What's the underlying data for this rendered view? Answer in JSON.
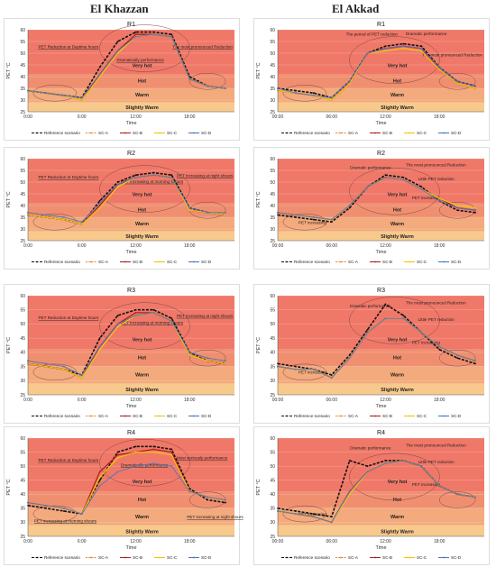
{
  "columns": {
    "left": "El Khazzan",
    "right": "El Akkad"
  },
  "colors": {
    "Reference scenario": "#111111",
    "SC-A": "#e8872a",
    "SC-B": "#b02020",
    "SC-C": "#f2c50c",
    "SC-D": "#4a78c2",
    "zone_very_hot": "#f07868",
    "zone_hot": "#f08f70",
    "zone_warm": "#f3aa7c",
    "zone_slightly_warm": "#f8c98c"
  },
  "legend_labels": [
    "Reference scenario",
    "SC-A",
    "SC-B",
    "SC-C",
    "SC-D"
  ],
  "chart_data": [
    {
      "type": "line",
      "title": "R1",
      "xlabel": "Time",
      "ylabel": "PET °C",
      "x": [
        0,
        2,
        4,
        6,
        8,
        10,
        12,
        14,
        16,
        18,
        20,
        22
      ],
      "xticks": [
        "0:00",
        "6:00",
        "12:00",
        "18:00"
      ],
      "ylim": [
        25,
        60
      ],
      "yticks": [
        25,
        30,
        35,
        40,
        45,
        50,
        55,
        60
      ],
      "zones": {
        "very_hot": "Very hot",
        "hot": "Hot",
        "warm": "Warm",
        "slightly_warm": "Slightly Warm"
      },
      "series": [
        {
          "name": "Reference scenario",
          "values": [
            34,
            33,
            32,
            31,
            44,
            55,
            59,
            59,
            58,
            40,
            36,
            35
          ]
        },
        {
          "name": "SC-A",
          "values": [
            34,
            33,
            32,
            30,
            40,
            50,
            57,
            58,
            57,
            39,
            36,
            35
          ]
        },
        {
          "name": "SC-B",
          "values": [
            34,
            33,
            32,
            30,
            41,
            51,
            58,
            58,
            57,
            39,
            36,
            35
          ]
        },
        {
          "name": "SC-C",
          "values": [
            34,
            33,
            32,
            30,
            40,
            50,
            57,
            58,
            57,
            39,
            36,
            35
          ]
        },
        {
          "name": "SC-D",
          "values": [
            34,
            33,
            32,
            31,
            41,
            51,
            57,
            58,
            57,
            39,
            36,
            35
          ]
        }
      ],
      "annotations": [
        "PET Reduction at Daytime hours",
        "Dramatically performance",
        "The most pronounced Reduction"
      ]
    },
    {
      "type": "line",
      "title": "R1",
      "xlabel": "Time",
      "ylabel": "PET °C",
      "x": [
        0,
        2,
        4,
        6,
        8,
        10,
        12,
        14,
        16,
        18,
        20,
        22
      ],
      "xticks": [
        "00:00",
        "06:00",
        "12:00",
        "18:00"
      ],
      "ylim": [
        25,
        60
      ],
      "yticks": [
        25,
        30,
        35,
        40,
        45,
        50,
        55,
        60
      ],
      "zones": {
        "very_hot": "Very hot",
        "hot": "Hot",
        "warm": "Warm",
        "slightly_warm": "Slightly Warm"
      },
      "series": [
        {
          "name": "Reference scenario",
          "values": [
            35,
            34,
            33,
            31,
            38,
            50,
            53,
            54,
            53,
            44,
            38,
            36
          ]
        },
        {
          "name": "SC-A",
          "values": [
            34,
            33,
            32,
            30,
            37,
            50,
            51,
            52,
            51,
            43,
            37,
            35
          ]
        },
        {
          "name": "SC-B",
          "values": [
            34,
            33,
            32,
            30,
            37,
            50,
            52,
            53,
            52,
            43,
            37,
            35
          ]
        },
        {
          "name": "SC-C",
          "values": [
            34,
            33,
            32,
            30,
            37,
            50,
            51,
            52,
            51,
            43,
            37,
            35
          ]
        },
        {
          "name": "SC-D",
          "values": [
            35,
            33,
            32,
            31,
            38,
            50,
            52,
            53,
            52,
            44,
            38,
            36
          ]
        }
      ],
      "annotations": [
        "The period of PET reduction",
        "Dramatic performance",
        "The most pronounced Reduction"
      ]
    },
    {
      "type": "line",
      "title": "R2",
      "xlabel": "Time",
      "ylabel": "PET °C",
      "x": [
        0,
        2,
        4,
        6,
        8,
        10,
        12,
        14,
        16,
        18,
        20,
        22
      ],
      "xticks": [
        "0:00",
        "6:00",
        "12:00",
        "18:00"
      ],
      "ylim": [
        25,
        60
      ],
      "yticks": [
        25,
        30,
        35,
        40,
        45,
        50,
        55,
        60
      ],
      "zones": {
        "very_hot": "Very hot",
        "hot": "Hot",
        "warm": "Warm",
        "slightly_warm": "Slightly Warm"
      },
      "series": [
        {
          "name": "Reference scenario",
          "values": [
            36,
            35,
            34,
            32,
            42,
            50,
            53,
            54,
            53,
            39,
            37,
            36
          ]
        },
        {
          "name": "SC-A",
          "values": [
            37,
            36,
            35,
            33,
            40,
            49,
            52,
            53,
            52,
            38,
            37,
            37
          ]
        },
        {
          "name": "SC-B",
          "values": [
            36,
            35,
            34,
            32,
            40,
            49,
            52,
            53,
            52,
            38,
            37,
            36
          ]
        },
        {
          "name": "SC-C",
          "values": [
            36,
            35,
            34,
            32,
            39,
            48,
            52,
            53,
            52,
            38,
            37,
            36
          ]
        },
        {
          "name": "SC-D",
          "values": [
            37,
            36,
            35,
            33,
            41,
            49,
            52,
            53,
            52,
            39,
            37,
            37
          ]
        }
      ],
      "annotations": [
        "PET Reduction at Daytime hours",
        "PET increasing at morning shours",
        "PET increasing at night shours"
      ]
    },
    {
      "type": "line",
      "title": "R2",
      "xlabel": "Time",
      "ylabel": "PET °C",
      "x": [
        0,
        2,
        4,
        6,
        8,
        10,
        12,
        14,
        16,
        18,
        20,
        22
      ],
      "xticks": [
        "00:00",
        "06:00",
        "12:00",
        "18:00"
      ],
      "ylim": [
        25,
        60
      ],
      "yticks": [
        25,
        30,
        35,
        40,
        45,
        50,
        55,
        60
      ],
      "zones": {
        "very_hot": "Very hot",
        "hot": "Hot",
        "warm": "Warm",
        "slightly_warm": "Slightly Warm"
      },
      "series": [
        {
          "name": "Reference scenario",
          "values": [
            36,
            35,
            34,
            33,
            39,
            48,
            53,
            52,
            48,
            42,
            38,
            37
          ]
        },
        {
          "name": "SC-A",
          "values": [
            37,
            36,
            35,
            34,
            40,
            48,
            52,
            51,
            47,
            43,
            40,
            39
          ]
        },
        {
          "name": "SC-B",
          "values": [
            37,
            36,
            35,
            34,
            40,
            48,
            52,
            51,
            47,
            43,
            39,
            38
          ]
        },
        {
          "name": "SC-C",
          "values": [
            37,
            36,
            35,
            34,
            40,
            48,
            52,
            51,
            47,
            43,
            40,
            39
          ]
        },
        {
          "name": "SC-D",
          "values": [
            37,
            36,
            35,
            34,
            40,
            48,
            52,
            51,
            47,
            42,
            39,
            38
          ]
        }
      ],
      "annotations": [
        "Dramatic performance",
        "The most pronounced Reduction",
        "Little PET reduction",
        "PET increasing",
        "PET increasing"
      ]
    },
    {
      "type": "line",
      "title": "R3",
      "xlabel": "Time",
      "ylabel": "PET °C",
      "x": [
        0,
        2,
        4,
        6,
        8,
        10,
        12,
        14,
        16,
        18,
        20,
        22
      ],
      "xticks": [
        "0:00",
        "6:00",
        "12:00",
        "18:00"
      ],
      "ylim": [
        25,
        60
      ],
      "yticks": [
        25,
        30,
        35,
        40,
        45,
        50,
        55,
        60
      ],
      "zones": {
        "very_hot": "Very hot",
        "hot": "Hot",
        "warm": "Warm",
        "slightly_warm": "Slightly Warm"
      },
      "series": [
        {
          "name": "Reference scenario",
          "values": [
            36,
            35,
            34,
            32,
            45,
            53,
            55,
            55,
            52,
            40,
            37,
            36
          ]
        },
        {
          "name": "SC-A",
          "values": [
            37,
            36,
            35,
            32,
            41,
            49,
            53,
            54,
            51,
            39,
            38,
            37
          ]
        },
        {
          "name": "SC-B",
          "values": [
            36,
            35,
            34,
            31,
            42,
            50,
            54,
            54,
            51,
            39,
            37,
            36
          ]
        },
        {
          "name": "SC-C",
          "values": [
            36,
            35,
            34,
            31,
            41,
            49,
            53,
            54,
            51,
            39,
            37,
            36
          ]
        },
        {
          "name": "SC-D",
          "values": [
            37,
            36,
            35,
            32,
            42,
            50,
            53,
            54,
            51,
            40,
            38,
            37
          ]
        }
      ],
      "annotations": [
        "PET Reduction at Daytime hours",
        "PET increasing at morning shours",
        "PET increasing at night shours"
      ]
    },
    {
      "type": "line",
      "title": "R3",
      "xlabel": "Time",
      "ylabel": "PET °C",
      "x": [
        0,
        2,
        4,
        6,
        8,
        10,
        12,
        14,
        16,
        18,
        20,
        22
      ],
      "xticks": [
        "00:00",
        "06:00",
        "12:00",
        "18:00"
      ],
      "ylim": [
        25,
        60
      ],
      "yticks": [
        25,
        30,
        35,
        40,
        45,
        50,
        55,
        60
      ],
      "zones": {
        "very_hot": "Very hot",
        "hot": "Hot",
        "warm": "Warm",
        "slightly_warm": "Slightly Warm"
      },
      "series": [
        {
          "name": "Reference scenario",
          "values": [
            36,
            35,
            34,
            32,
            39,
            48,
            57,
            53,
            47,
            41,
            38,
            36
          ]
        },
        {
          "name": "SC-A",
          "values": [
            35,
            34,
            34,
            31,
            38,
            47,
            52,
            52,
            47,
            42,
            39,
            37
          ]
        },
        {
          "name": "SC-B",
          "values": [
            35,
            34,
            34,
            31,
            38,
            47,
            52,
            52,
            47,
            42,
            39,
            37
          ]
        },
        {
          "name": "SC-C",
          "values": [
            35,
            34,
            34,
            31,
            38,
            47,
            52,
            52,
            47,
            42,
            39,
            37
          ]
        },
        {
          "name": "SC-D",
          "values": [
            35,
            34,
            34,
            31,
            38,
            47,
            52,
            52,
            47,
            42,
            39,
            37
          ]
        }
      ],
      "annotations": [
        "Dramatic performance",
        "The most pronounced Reduction",
        "Little PET reduction",
        "PET increasing",
        "PET increasing"
      ]
    },
    {
      "type": "line",
      "title": "R4",
      "xlabel": "Time",
      "ylabel": "PET °C",
      "x": [
        0,
        2,
        4,
        6,
        8,
        10,
        12,
        14,
        16,
        18,
        20,
        22
      ],
      "xticks": [
        "0:00",
        "6:00",
        "12:00",
        "18:00"
      ],
      "ylim": [
        25,
        60
      ],
      "yticks": [
        25,
        30,
        35,
        40,
        45,
        50,
        55,
        60
      ],
      "zones": {
        "very_hot": "Very hot",
        "hot": "Hot",
        "warm": "Warm",
        "slightly_warm": "Slightly Warm"
      },
      "series": [
        {
          "name": "Reference scenario",
          "values": [
            36,
            35,
            34,
            33,
            45,
            55,
            57,
            57,
            56,
            42,
            38,
            37
          ]
        },
        {
          "name": "SC-A",
          "values": [
            37,
            36,
            35,
            33,
            44,
            53,
            55,
            56,
            55,
            41,
            39,
            38
          ]
        },
        {
          "name": "SC-B",
          "values": [
            37,
            36,
            35,
            33,
            48,
            54,
            55,
            56,
            55,
            41,
            39,
            38
          ]
        },
        {
          "name": "SC-C",
          "values": [
            37,
            36,
            35,
            33,
            46,
            53,
            55,
            55,
            54,
            41,
            39,
            38
          ]
        },
        {
          "name": "SC-D",
          "values": [
            37,
            36,
            35,
            33,
            43,
            48,
            50,
            51,
            50,
            41,
            39,
            38
          ]
        }
      ],
      "annotations": [
        "PET Reduction at Daytime hours",
        "Dramatically performance",
        "Most seriously performance",
        "PET increasing at morning shours",
        "PET increasing at night shours"
      ]
    },
    {
      "type": "line",
      "title": "R4",
      "xlabel": "Time",
      "ylabel": "PET °C",
      "x": [
        0,
        2,
        4,
        6,
        8,
        10,
        12,
        14,
        16,
        18,
        20,
        22
      ],
      "xticks": [
        "00:00",
        "06:00",
        "12:00",
        "18:00"
      ],
      "ylim": [
        25,
        60
      ],
      "yticks": [
        25,
        30,
        35,
        40,
        45,
        50,
        55,
        60
      ],
      "zones": {
        "very_hot": "Very hot",
        "hot": "Hot",
        "warm": "Warm",
        "slightly_warm": "Slightly Warm"
      },
      "series": [
        {
          "name": "Reference scenario",
          "values": [
            35,
            34,
            33,
            32,
            52,
            50,
            52,
            52,
            50,
            43,
            40,
            39
          ]
        },
        {
          "name": "SC-A",
          "values": [
            34,
            33,
            32,
            30,
            40,
            48,
            51,
            52,
            50,
            43,
            40,
            39
          ]
        },
        {
          "name": "SC-B",
          "values": [
            34,
            33,
            32,
            30,
            41,
            48,
            51,
            52,
            50,
            43,
            40,
            39
          ]
        },
        {
          "name": "SC-C",
          "values": [
            34,
            33,
            32,
            30,
            40,
            48,
            51,
            52,
            50,
            43,
            40,
            39
          ]
        },
        {
          "name": "SC-D",
          "values": [
            34,
            33,
            32,
            30,
            41,
            48,
            51,
            52,
            50,
            43,
            40,
            39
          ]
        }
      ],
      "annotations": [
        "Dramatic performance",
        "The most pronounced Reduction",
        "Little PET reduction",
        "PET increasing",
        "PET increasing"
      ]
    }
  ]
}
